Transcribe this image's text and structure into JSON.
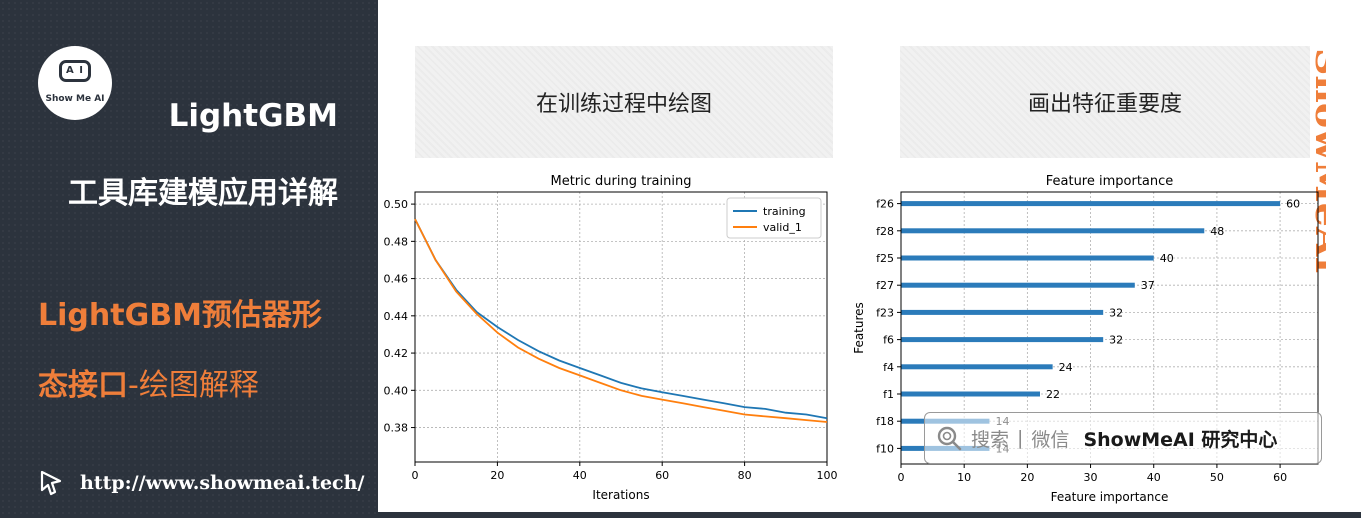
{
  "brand": {
    "logo_face": "A I",
    "logo_text": "Show Me AI"
  },
  "left": {
    "title_line1": "LightGBM",
    "title_line2": "工具库建模应用详解",
    "subtitle_line1": "LightGBM预估器形",
    "subtitle_line2_bold": "态接口",
    "subtitle_line2_light": "-绘图解释",
    "url": "http://www.showmeai.tech/"
  },
  "headings": {
    "left": "在训练过程中绘图",
    "right": "画出特征重要度"
  },
  "watermark": {
    "vertical": "ShowMeAI",
    "search": "搜索",
    "separator": "|",
    "wechat": "微信",
    "name": "ShowMeAI 研究中心"
  },
  "colors": {
    "panel": "#2c333d",
    "accent": "#ef7e3a",
    "training": "#1f77b4",
    "valid": "#ff7f0e",
    "bar": "#2b7bba"
  },
  "chart_data": [
    {
      "type": "line",
      "title": "Metric during training",
      "xlabel": "Iterations",
      "ylabel": "",
      "xlim": [
        0,
        100
      ],
      "ylim": [
        0.3615,
        0.5065
      ],
      "xticks": [
        "0",
        "20",
        "40",
        "60",
        "80",
        "100"
      ],
      "yticks": [
        "0.50",
        "0.48",
        "0.46",
        "0.44",
        "0.42",
        "0.40",
        "0.38"
      ],
      "grid": true,
      "legend": "top-right",
      "series": [
        {
          "name": "training",
          "x": [
            0,
            5,
            10,
            15,
            20,
            25,
            30,
            35,
            40,
            45,
            50,
            55,
            60,
            65,
            70,
            75,
            80,
            85,
            90,
            95,
            100
          ],
          "values": [
            0.492,
            0.47,
            0.454,
            0.442,
            0.434,
            0.427,
            0.421,
            0.416,
            0.412,
            0.408,
            0.404,
            0.401,
            0.399,
            0.397,
            0.395,
            0.393,
            0.391,
            0.39,
            0.388,
            0.387,
            0.385
          ]
        },
        {
          "name": "valid_1",
          "x": [
            0,
            5,
            10,
            15,
            20,
            25,
            30,
            35,
            40,
            45,
            50,
            55,
            60,
            65,
            70,
            75,
            80,
            85,
            90,
            95,
            100
          ],
          "values": [
            0.492,
            0.47,
            0.453,
            0.441,
            0.431,
            0.423,
            0.417,
            0.412,
            0.408,
            0.404,
            0.4,
            0.397,
            0.395,
            0.393,
            0.391,
            0.389,
            0.387,
            0.386,
            0.385,
            0.384,
            0.383
          ]
        }
      ]
    },
    {
      "type": "bar",
      "orientation": "horizontal",
      "title": "Feature importance",
      "xlabel": "Feature importance",
      "ylabel": "Features",
      "xlim": [
        0,
        66
      ],
      "xticks": [
        "0",
        "10",
        "20",
        "30",
        "40",
        "50",
        "60"
      ],
      "grid": true,
      "categories": [
        "f26",
        "f28",
        "f25",
        "f27",
        "f23",
        "f6",
        "f4",
        "f1",
        "f18",
        "f10"
      ],
      "values": [
        60,
        48,
        40,
        37,
        32,
        32,
        24,
        22,
        14,
        14
      ],
      "labels": [
        "60",
        "48",
        "40",
        "37",
        "32",
        "32",
        "24",
        "22",
        "14",
        "14"
      ]
    }
  ]
}
